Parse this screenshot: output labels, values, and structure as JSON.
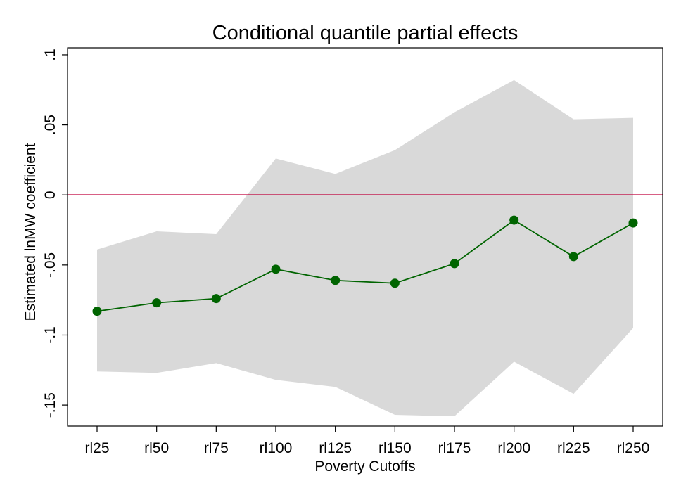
{
  "chart_data": {
    "type": "line",
    "title": "Conditional quantile partial effects",
    "xlabel": "Poverty Cutoffs",
    "ylabel": "Estimated lnMW coefficient",
    "categories": [
      "rl25",
      "rl50",
      "rl75",
      "rl100",
      "rl125",
      "rl150",
      "rl175",
      "rl200",
      "rl225",
      "rl250"
    ],
    "ylim": [
      -0.165,
      0.105
    ],
    "yticks": [
      -0.15,
      -0.1,
      -0.05,
      0,
      0.05,
      0.1
    ],
    "ytick_labels": [
      "-.15",
      "-.1",
      "-.05",
      "0",
      ".05",
      ".1"
    ],
    "reference_line": 0,
    "grid": false,
    "series": [
      {
        "estimate": [
          -0.083,
          -0.077,
          -0.074,
          -0.053,
          -0.061,
          -0.063,
          -0.049,
          -0.018,
          -0.044,
          -0.02
        ],
        "ci_lower": [
          -0.126,
          -0.127,
          -0.12,
          -0.132,
          -0.137,
          -0.157,
          -0.158,
          -0.119,
          -0.142,
          -0.095
        ],
        "ci_upper": [
          -0.039,
          -0.026,
          -0.028,
          0.026,
          0.015,
          0.032,
          0.059,
          0.082,
          0.054,
          0.055
        ]
      }
    ],
    "colors": {
      "line": "#006400",
      "band": "#d9d9d9",
      "reference": "#c0003c",
      "axis": "#000000"
    }
  }
}
